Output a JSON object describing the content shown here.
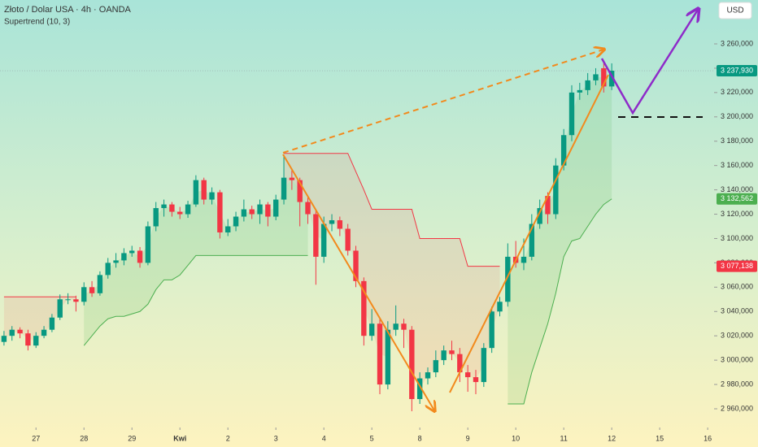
{
  "chart_data": {
    "type": "candlestick",
    "title": "Złoto / Dolar USA · 4h · OANDA",
    "indicator": "Supertrend (10, 3)",
    "currency_button": "USD",
    "up_color": "#089981",
    "down_color": "#f23645",
    "xlim": [
      -0.5,
      88.8
    ],
    "xticks": [
      {
        "value": 4,
        "label": "27"
      },
      {
        "value": 10,
        "label": "28"
      },
      {
        "value": 16,
        "label": "29"
      },
      {
        "value": 22,
        "label": "Kwi"
      },
      {
        "value": 28,
        "label": "2"
      },
      {
        "value": 34,
        "label": "3"
      },
      {
        "value": 40,
        "label": "4"
      },
      {
        "value": 46,
        "label": "5"
      },
      {
        "value": 52,
        "label": "8"
      },
      {
        "value": 58,
        "label": "9"
      },
      {
        "value": 64,
        "label": "10"
      },
      {
        "value": 70,
        "label": "11"
      },
      {
        "value": 76,
        "label": "12"
      },
      {
        "value": 82,
        "label": "15"
      },
      {
        "value": 88,
        "label": "16"
      }
    ],
    "ylim": [
      2945.3,
      3296.08
    ],
    "yticks": [
      {
        "value": 2960,
        "label": "2 960,000"
      },
      {
        "value": 2980,
        "label": "2 980,000"
      },
      {
        "value": 3000,
        "label": "3 000,000"
      },
      {
        "value": 3020,
        "label": "3 020,000"
      },
      {
        "value": 3040,
        "label": "3 040,000"
      },
      {
        "value": 3060,
        "label": "3 060,000"
      },
      {
        "value": 3080,
        "label": "3 080,000"
      },
      {
        "value": 3100,
        "label": "3 100,000"
      },
      {
        "value": 3120,
        "label": "3 120,000"
      },
      {
        "value": 3140,
        "label": "3 140,000"
      },
      {
        "value": 3160,
        "label": "3 160,000"
      },
      {
        "value": 3180,
        "label": "3 180,000"
      },
      {
        "value": 3200,
        "label": "3 200,000"
      },
      {
        "value": 3220,
        "label": "3 220,000"
      },
      {
        "value": 3240,
        "label": "3 240,000"
      },
      {
        "value": 3260,
        "label": "3 260,000"
      }
    ],
    "open": [
      3015,
      3020,
      3025,
      3022,
      3012,
      3020,
      3025,
      3035,
      3050,
      3050,
      3048,
      3060,
      3055,
      3070,
      3080,
      3082,
      3088,
      3090,
      3080,
      3110,
      3125,
      3128,
      3122,
      3120,
      3128,
      3148,
      3132,
      3138,
      3105,
      3110,
      3118,
      3124,
      3120,
      3128,
      3118,
      3132,
      3150,
      3148,
      3130,
      3120,
      3085,
      3112,
      3115,
      3108,
      3090,
      3065,
      3020,
      3030,
      2980,
      3025,
      3030,
      3025,
      2968,
      2985,
      2990,
      3000,
      3008,
      3005,
      2990,
      2986,
      2982,
      3010,
      3040,
      3048,
      3085,
      3080,
      3085,
      3112,
      3135,
      3120,
      3160,
      3185,
      3220,
      3222,
      3230,
      3240,
      3225
    ],
    "high": [
      3024,
      3028,
      3027,
      3025,
      3023,
      3028,
      3038,
      3054,
      3055,
      3053,
      3064,
      3065,
      3073,
      3084,
      3088,
      3092,
      3094,
      3093,
      3114,
      3130,
      3132,
      3130,
      3126,
      3131,
      3152,
      3150,
      3142,
      3140,
      3116,
      3122,
      3132,
      3127,
      3132,
      3130,
      3136,
      3168,
      3156,
      3150,
      3134,
      3124,
      3118,
      3120,
      3118,
      3112,
      3094,
      3068,
      3042,
      3034,
      3032,
      3045,
      3034,
      3028,
      2990,
      2994,
      3008,
      3012,
      3016,
      3010,
      2996,
      2992,
      3014,
      3044,
      3052,
      3096,
      3098,
      3100,
      3120,
      3132,
      3138,
      3166,
      3190,
      3226,
      3228,
      3236,
      3240,
      3246,
      3244
    ],
    "low": [
      3012,
      3016,
      3018,
      3008,
      3010,
      3018,
      3023,
      3033,
      3046,
      3040,
      3045,
      3052,
      3053,
      3067,
      3076,
      3078,
      3085,
      3076,
      3078,
      3106,
      3118,
      3118,
      3116,
      3117,
      3126,
      3128,
      3128,
      3100,
      3102,
      3106,
      3114,
      3116,
      3112,
      3110,
      3115,
      3128,
      3140,
      3110,
      3112,
      3062,
      3080,
      3106,
      3102,
      3086,
      3060,
      3012,
      3016,
      2972,
      2976,
      3020,
      3010,
      2958,
      2964,
      2980,
      2986,
      2996,
      3000,
      2982,
      2974,
      2972,
      2978,
      3006,
      3036,
      3044,
      3076,
      3074,
      3082,
      3108,
      3112,
      3116,
      3156,
      3180,
      3214,
      3218,
      3226,
      3220,
      3222
    ],
    "close": [
      3020,
      3025,
      3022,
      3012,
      3020,
      3025,
      3035,
      3050,
      3050,
      3048,
      3060,
      3055,
      3070,
      3080,
      3082,
      3088,
      3090,
      3080,
      3110,
      3125,
      3128,
      3122,
      3120,
      3128,
      3148,
      3132,
      3138,
      3105,
      3110,
      3118,
      3124,
      3120,
      3128,
      3118,
      3132,
      3150,
      3148,
      3130,
      3120,
      3085,
      3112,
      3115,
      3108,
      3090,
      3065,
      3020,
      3030,
      2980,
      3025,
      3030,
      3025,
      2968,
      2985,
      2990,
      3000,
      3008,
      3005,
      2990,
      2986,
      2982,
      3010,
      3040,
      3048,
      3085,
      3080,
      3085,
      3112,
      3125,
      3120,
      3160,
      3185,
      3220,
      3222,
      3230,
      3235,
      3225,
      3237.93
    ],
    "supertrend": [
      {
        "color": "#4caf50",
        "fill": "rgba(76,175,80,0.14)",
        "values": [
          null,
          null,
          null,
          null,
          null,
          null,
          null,
          null,
          null,
          null,
          3012,
          3020,
          3028,
          3034,
          3036,
          3036,
          3038,
          3040,
          3046,
          3058,
          3066,
          3066,
          3070,
          3078,
          3086,
          3086,
          3086,
          3086,
          3086,
          3086,
          3086,
          3086,
          3086,
          3086,
          3086,
          3086,
          3086,
          3086,
          3086,
          null,
          null,
          null,
          null,
          null,
          null,
          null,
          null,
          null,
          null,
          null,
          null,
          null,
          null,
          null,
          null,
          null,
          null,
          null,
          null,
          null,
          null,
          null,
          null,
          2964,
          2964,
          2964,
          2990,
          3010,
          3030,
          3055,
          3085,
          3098,
          3100,
          3110,
          3120,
          3128,
          3132.562
        ]
      },
      {
        "color": "#f23645",
        "fill": "rgba(242,54,69,0.10)",
        "values": [
          3052,
          3052,
          3052,
          3052,
          3052,
          3052,
          3052,
          3052,
          3052,
          3052,
          null,
          null,
          null,
          null,
          null,
          null,
          null,
          null,
          null,
          null,
          null,
          null,
          null,
          null,
          null,
          null,
          null,
          null,
          null,
          null,
          null,
          null,
          null,
          null,
          null,
          3170,
          3170,
          3170,
          3170,
          3170,
          3170,
          3170,
          3170,
          3170,
          3155,
          3140,
          3124,
          3124,
          3124,
          3124,
          3124,
          3124,
          3100,
          3100,
          3100,
          3100,
          3100,
          3100,
          3077.138,
          3077.138,
          3077.138,
          3077.138,
          3077.138,
          null,
          null,
          null,
          null,
          null,
          null,
          null,
          null,
          null,
          null,
          null,
          null,
          null,
          null
        ]
      }
    ],
    "price_labels": [
      {
        "value": 3237.93,
        "label": "3 237,930",
        "color": "#089981"
      },
      {
        "value": 3132.562,
        "label": "3 132,562",
        "color": "#4caf50"
      },
      {
        "value": 3077.138,
        "label": "3 077,138",
        "color": "#f23645"
      }
    ]
  }
}
